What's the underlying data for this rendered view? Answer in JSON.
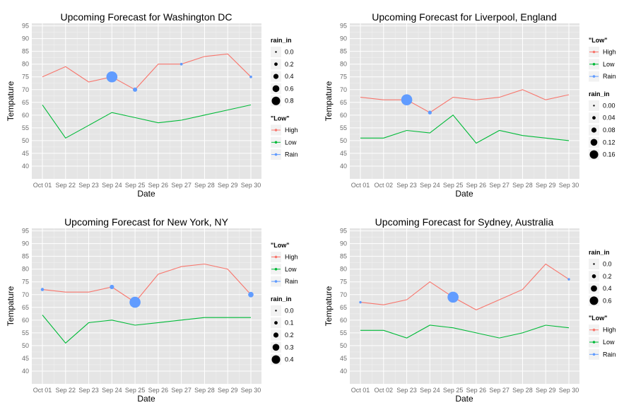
{
  "chart_data": [
    {
      "type": "line",
      "title": "Upcoming Forecast for Washington DC",
      "xlabel": "Date",
      "ylabel": "Tempature",
      "categories": [
        "Oct 01",
        "Sep 22",
        "Sep 23",
        "Sep 24",
        "Sep 25",
        "Sep 26",
        "Sep 27",
        "Sep 28",
        "Sep 29",
        "Sep 30"
      ],
      "ylim": [
        35,
        96
      ],
      "yticks": [
        40,
        45,
        50,
        55,
        60,
        65,
        70,
        75,
        80,
        85,
        90,
        95
      ],
      "grid": true,
      "colors": {
        "High": "#F8766D",
        "Low": "#00BA38",
        "Rain": "#619CFF"
      },
      "series": [
        {
          "name": "High",
          "values": [
            75,
            79,
            73,
            75,
            70,
            80,
            80,
            83,
            84,
            75
          ]
        },
        {
          "name": "Low",
          "values": [
            64,
            51,
            56,
            61,
            59,
            57,
            58,
            60,
            62,
            64
          ]
        }
      ],
      "rain_in": [
        0,
        0,
        0,
        0.8,
        0.2,
        0,
        0.05,
        0,
        0,
        0.05
      ],
      "legends": [
        {
          "title": "rain_in",
          "type": "size",
          "entries": [
            "0.0",
            "0.2",
            "0.4",
            "0.6",
            "0.8"
          ],
          "sizes": [
            0.0,
            0.2,
            0.4,
            0.6,
            0.8
          ]
        },
        {
          "title": "\"Low\"",
          "type": "color",
          "entries": [
            "High",
            "Low",
            "Rain"
          ]
        }
      ]
    },
    {
      "type": "line",
      "title": "Upcoming Forecast for Liverpool, England",
      "xlabel": "Date",
      "ylabel": "Tempature",
      "categories": [
        "Oct 01",
        "Oct 02",
        "Sep 23",
        "Sep 24",
        "Sep 25",
        "Sep 26",
        "Sep 27",
        "Sep 28",
        "Sep 29",
        "Sep 30"
      ],
      "ylim": [
        35,
        96
      ],
      "yticks": [
        40,
        45,
        50,
        55,
        60,
        65,
        70,
        75,
        80,
        85,
        90,
        95
      ],
      "grid": true,
      "colors": {
        "High": "#F8766D",
        "Low": "#00BA38",
        "Rain": "#619CFF"
      },
      "series": [
        {
          "name": "High",
          "values": [
            67,
            66,
            66,
            61,
            67,
            66,
            67,
            70,
            66,
            68
          ]
        },
        {
          "name": "Low",
          "values": [
            51,
            51,
            54,
            53,
            60,
            49,
            54,
            52,
            51,
            50
          ]
        }
      ],
      "rain_in": [
        0,
        0,
        0.16,
        0.03,
        0,
        0,
        0,
        0,
        0,
        0
      ],
      "legends": [
        {
          "title": "\"Low\"",
          "type": "color",
          "entries": [
            "High",
            "Low",
            "Rain"
          ]
        },
        {
          "title": "rain_in",
          "type": "size",
          "entries": [
            "0.00",
            "0.04",
            "0.08",
            "0.12",
            "0.16"
          ],
          "sizes": [
            0.0,
            0.04,
            0.08,
            0.12,
            0.16
          ]
        }
      ]
    },
    {
      "type": "line",
      "title": "Upcoming Forecast for New York, NY",
      "xlabel": "Date",
      "ylabel": "Tempature",
      "categories": [
        "Oct 01",
        "Sep 22",
        "Sep 23",
        "Sep 24",
        "Sep 25",
        "Sep 26",
        "Sep 27",
        "Sep 28",
        "Sep 29",
        "Sep 30"
      ],
      "ylim": [
        35,
        96
      ],
      "yticks": [
        40,
        45,
        50,
        55,
        60,
        65,
        70,
        75,
        80,
        85,
        90,
        95
      ],
      "grid": true,
      "colors": {
        "High": "#F8766D",
        "Low": "#00BA38",
        "Rain": "#619CFF"
      },
      "series": [
        {
          "name": "High",
          "values": [
            72,
            71,
            71,
            73,
            67,
            78,
            81,
            82,
            80,
            70
          ]
        },
        {
          "name": "Low",
          "values": [
            62,
            51,
            59,
            60,
            58,
            59,
            60,
            61,
            61,
            61
          ]
        }
      ],
      "rain_in": [
        0.05,
        0,
        0,
        0.1,
        0.4,
        0,
        0,
        0,
        0,
        0.15
      ],
      "legends": [
        {
          "title": "\"Low\"",
          "type": "color",
          "entries": [
            "High",
            "Low",
            "Rain"
          ]
        },
        {
          "title": "rain_in",
          "type": "size",
          "entries": [
            "0.0",
            "0.1",
            "0.2",
            "0.3",
            "0.4"
          ],
          "sizes": [
            0.0,
            0.1,
            0.2,
            0.3,
            0.4
          ]
        }
      ]
    },
    {
      "type": "line",
      "title": "Upcoming Forecast for Sydney, Australia",
      "xlabel": "Date",
      "ylabel": "Tempature",
      "categories": [
        "Oct 01",
        "Oct 02",
        "Sep 23",
        "Sep 24",
        "Sep 25",
        "Sep 26",
        "Sep 27",
        "Sep 28",
        "Sep 29",
        "Sep 30"
      ],
      "ylim": [
        35,
        96
      ],
      "yticks": [
        40,
        45,
        50,
        55,
        60,
        65,
        70,
        75,
        80,
        85,
        90,
        95
      ],
      "grid": true,
      "colors": {
        "High": "#F8766D",
        "Low": "#00BA38",
        "Rain": "#619CFF"
      },
      "series": [
        {
          "name": "High",
          "values": [
            67,
            66,
            68,
            75,
            69,
            64,
            68,
            72,
            82,
            76
          ]
        },
        {
          "name": "Low",
          "values": [
            56,
            56,
            53,
            58,
            57,
            55,
            53,
            55,
            58,
            57
          ]
        }
      ],
      "rain_in": [
        0.02,
        0,
        0,
        0,
        0.6,
        0,
        0,
        0,
        0,
        0.02
      ],
      "legends": [
        {
          "title": "rain_in",
          "type": "size",
          "entries": [
            "0.0",
            "0.2",
            "0.4",
            "0.6"
          ],
          "sizes": [
            0.0,
            0.2,
            0.4,
            0.6
          ]
        },
        {
          "title": "\"Low\"",
          "type": "color",
          "entries": [
            "High",
            "Low",
            "Rain"
          ]
        }
      ]
    }
  ]
}
